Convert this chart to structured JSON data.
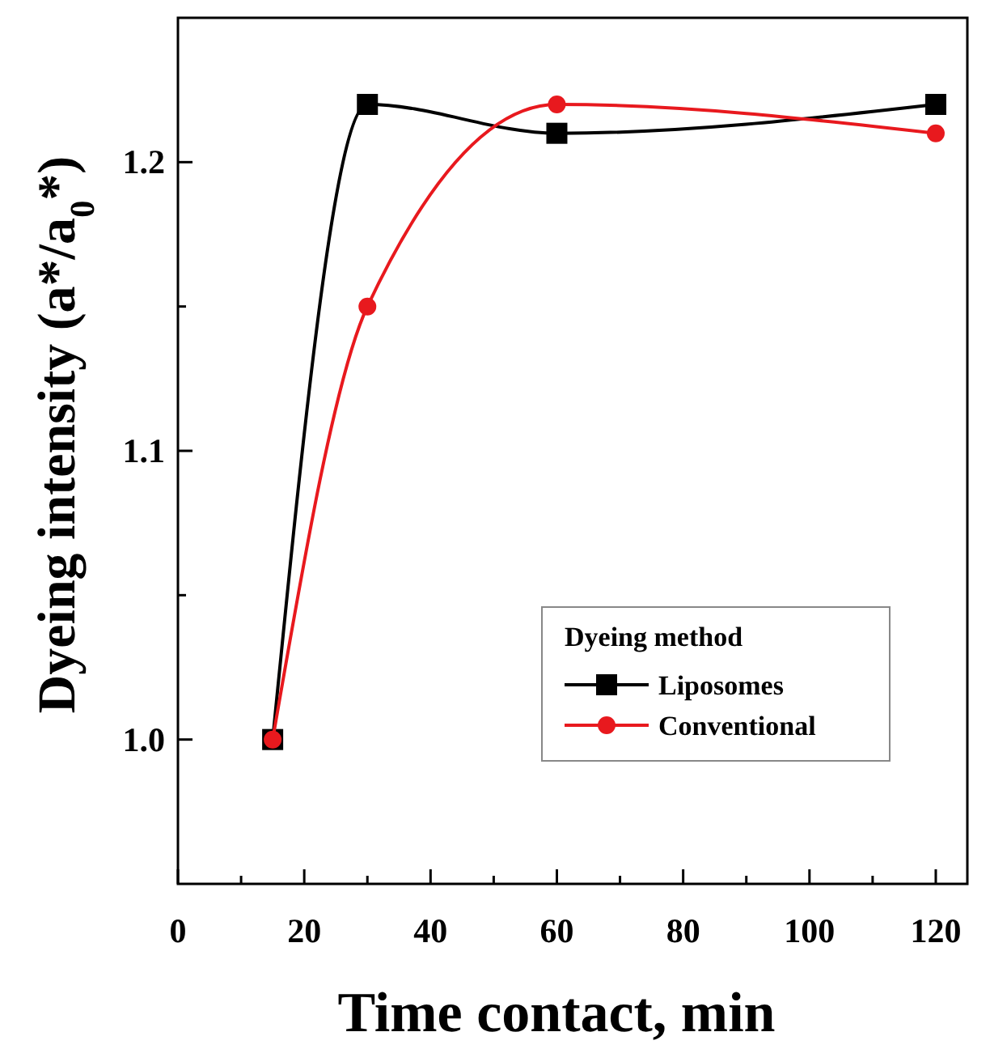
{
  "chart_data": {
    "type": "line",
    "xlabel": "Time contact, min",
    "ylabel": "Dyeing intensity (a*/a$_{0}$*)",
    "legend_title": "Dyeing method",
    "legend": "bottom right",
    "x": [
      15,
      30,
      60,
      120
    ],
    "series": [
      {
        "name": "Liposomes",
        "color": "#000000",
        "marker": "square",
        "values": [
          1.0,
          1.22,
          1.21,
          1.22
        ]
      },
      {
        "name": "Conventional",
        "color": "#e8191e",
        "marker": "circle",
        "values": [
          1.0,
          1.15,
          1.22,
          1.21
        ]
      }
    ],
    "xlim": [
      0,
      125
    ],
    "xticks": [
      0,
      {
        "value": 10,
        "label": null
      },
      20,
      {
        "value": 30,
        "label": null
      },
      40,
      {
        "value": 50,
        "label": null
      },
      60,
      {
        "value": 70,
        "label": null
      },
      80,
      {
        "value": 90,
        "label": null
      },
      100,
      {
        "value": 110,
        "label": null
      },
      120
    ],
    "ylim": [
      0.95,
      1.25
    ],
    "yticks": [
      {
        "value": 1.0,
        "label": "1.0"
      },
      {
        "value": 1.05,
        "label": null
      },
      1.1,
      {
        "value": 1.15,
        "label": null
      },
      1.2
    ],
    "line_style": "solid",
    "grid": false
  }
}
